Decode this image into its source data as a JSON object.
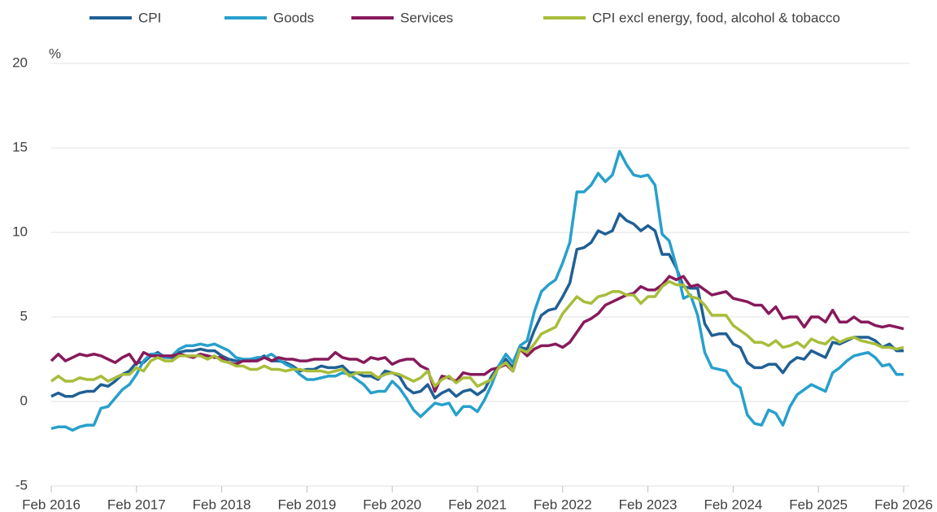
{
  "chart_data": {
    "type": "line",
    "y_label": "%",
    "categories": [
      "Feb 2016",
      null,
      null,
      null,
      null,
      null,
      null,
      null,
      null,
      null,
      null,
      null,
      "Feb 2017",
      null,
      null,
      null,
      null,
      null,
      null,
      null,
      null,
      null,
      null,
      null,
      "Feb 2018",
      null,
      null,
      null,
      null,
      null,
      null,
      null,
      null,
      null,
      null,
      null,
      "Feb 2019",
      null,
      null,
      null,
      null,
      null,
      null,
      null,
      null,
      null,
      null,
      null,
      "Feb 2020",
      null,
      null,
      null,
      null,
      null,
      null,
      null,
      null,
      null,
      null,
      null,
      "Feb 2021",
      null,
      null,
      null,
      null,
      null,
      null,
      null,
      null,
      null,
      null,
      null,
      "Feb 2022",
      null,
      null,
      null,
      null,
      null,
      null,
      null,
      null,
      null,
      null,
      null,
      "Feb 2023",
      null,
      null,
      null,
      null,
      null,
      null,
      null,
      null,
      null,
      null,
      null,
      "Feb 2024",
      null,
      null,
      null,
      null,
      null,
      null,
      null,
      null,
      null,
      null,
      null,
      "Feb 2025",
      null,
      null,
      null,
      null,
      null,
      null,
      null,
      null,
      null,
      null,
      null,
      "Feb 2026"
    ],
    "series": [
      {
        "name": "CPI",
        "color": "#206095",
        "values": [
          0.3,
          0.5,
          0.3,
          0.3,
          0.5,
          0.6,
          0.6,
          1.0,
          0.9,
          1.2,
          1.6,
          1.8,
          2.3,
          2.3,
          2.7,
          2.9,
          2.6,
          2.6,
          2.9,
          3.0,
          3.0,
          3.1,
          3.0,
          3.0,
          2.7,
          2.5,
          2.4,
          2.4,
          2.4,
          2.5,
          2.7,
          2.4,
          2.4,
          2.3,
          2.1,
          1.8,
          1.9,
          1.9,
          2.1,
          2.0,
          2.0,
          2.1,
          1.7,
          1.7,
          1.5,
          1.5,
          1.3,
          1.8,
          1.7,
          1.5,
          0.8,
          0.5,
          0.6,
          1.0,
          0.2,
          0.5,
          0.7,
          0.3,
          0.6,
          0.7,
          0.4,
          0.7,
          1.5,
          2.1,
          2.5,
          2.0,
          3.2,
          3.1,
          4.2,
          5.1,
          5.4,
          5.5,
          6.2,
          7.0,
          9.0,
          9.1,
          9.4,
          10.1,
          9.9,
          10.1,
          11.1,
          10.7,
          10.5,
          10.1,
          10.4,
          10.1,
          8.7,
          8.7,
          7.9,
          6.8,
          6.7,
          6.7,
          4.6,
          3.9,
          4.0,
          4.0,
          3.4,
          3.2,
          2.3,
          2.0,
          2.0,
          2.2,
          2.2,
          1.7,
          2.3,
          2.6,
          2.5,
          3.0,
          2.8,
          2.6,
          3.5,
          3.4,
          3.6,
          3.8,
          3.8,
          3.8,
          3.6,
          3.2,
          3.4,
          3.0,
          3.0
        ]
      },
      {
        "name": "Goods",
        "color": "#27a0cc",
        "values": [
          -1.6,
          -1.5,
          -1.5,
          -1.7,
          -1.5,
          -1.4,
          -1.4,
          -0.4,
          -0.3,
          0.2,
          0.7,
          1.0,
          1.6,
          2.4,
          2.8,
          2.8,
          2.6,
          2.7,
          3.1,
          3.3,
          3.3,
          3.4,
          3.3,
          3.4,
          3.2,
          3.0,
          2.6,
          2.5,
          2.5,
          2.6,
          2.6,
          2.8,
          2.5,
          2.2,
          2.0,
          1.6,
          1.3,
          1.3,
          1.4,
          1.5,
          1.5,
          1.7,
          1.6,
          1.3,
          1.0,
          0.5,
          0.6,
          0.6,
          1.2,
          0.8,
          0.2,
          -0.5,
          -0.9,
          -0.5,
          -0.1,
          -0.2,
          -0.1,
          -0.8,
          -0.3,
          -0.3,
          -0.6,
          0.1,
          1.0,
          2.1,
          2.8,
          2.3,
          3.3,
          3.6,
          5.3,
          6.5,
          6.9,
          7.2,
          8.2,
          9.4,
          12.4,
          12.4,
          12.8,
          13.5,
          13.0,
          13.4,
          14.8,
          14.0,
          13.4,
          13.3,
          13.4,
          12.8,
          9.9,
          9.5,
          8.0,
          6.1,
          6.3,
          5.1,
          2.9,
          2.0,
          1.9,
          1.8,
          1.1,
          0.8,
          -0.8,
          -1.3,
          -1.4,
          -0.5,
          -0.7,
          -1.4,
          -0.3,
          0.4,
          0.7,
          1.0,
          0.8,
          0.6,
          1.7,
          2.0,
          2.4,
          2.7,
          2.8,
          2.9,
          2.6,
          2.1,
          2.2,
          1.6,
          1.6
        ]
      },
      {
        "name": "Services",
        "color": "#871a5b",
        "values": [
          2.4,
          2.8,
          2.4,
          2.6,
          2.8,
          2.7,
          2.8,
          2.7,
          2.5,
          2.3,
          2.6,
          2.8,
          2.2,
          2.9,
          2.7,
          2.7,
          2.7,
          2.7,
          2.8,
          2.7,
          2.6,
          2.8,
          2.7,
          2.6,
          2.6,
          2.3,
          2.2,
          2.4,
          2.4,
          2.4,
          2.6,
          2.4,
          2.6,
          2.5,
          2.5,
          2.4,
          2.4,
          2.5,
          2.5,
          2.5,
          2.9,
          2.6,
          2.5,
          2.5,
          2.3,
          2.6,
          2.5,
          2.6,
          2.2,
          2.4,
          2.5,
          2.5,
          2.1,
          1.9,
          0.6,
          1.5,
          1.4,
          1.2,
          1.7,
          1.6,
          1.6,
          1.6,
          1.9,
          2.0,
          2.2,
          1.8,
          3.1,
          2.7,
          3.1,
          3.3,
          3.3,
          3.4,
          3.2,
          3.5,
          4.1,
          4.7,
          4.9,
          5.2,
          5.7,
          5.9,
          6.1,
          6.3,
          6.4,
          6.8,
          6.6,
          6.6,
          6.9,
          7.4,
          7.2,
          7.4,
          6.8,
          6.9,
          6.6,
          6.3,
          6.4,
          6.5,
          6.1,
          6.0,
          5.9,
          5.7,
          5.7,
          5.2,
          5.6,
          4.9,
          5.0,
          5.0,
          4.4,
          5.0,
          5.0,
          4.7,
          5.4,
          4.7,
          4.7,
          5.0,
          4.7,
          4.7,
          4.5,
          4.4,
          4.5,
          4.4,
          4.3
        ]
      },
      {
        "name": "CPI excl energy, food, alcohol & tobacco",
        "color": "#a8bd3a",
        "values": [
          1.2,
          1.5,
          1.2,
          1.2,
          1.4,
          1.3,
          1.3,
          1.5,
          1.2,
          1.4,
          1.6,
          1.6,
          2.0,
          1.8,
          2.4,
          2.6,
          2.4,
          2.4,
          2.7,
          2.7,
          2.7,
          2.7,
          2.5,
          2.7,
          2.4,
          2.3,
          2.1,
          2.1,
          1.9,
          1.9,
          2.1,
          1.9,
          1.9,
          1.8,
          1.9,
          1.9,
          1.8,
          1.8,
          1.8,
          1.7,
          1.8,
          1.9,
          1.5,
          1.7,
          1.7,
          1.7,
          1.4,
          1.6,
          1.7,
          1.6,
          1.4,
          1.2,
          1.4,
          1.8,
          0.9,
          1.3,
          1.5,
          1.1,
          1.4,
          1.4,
          0.9,
          1.1,
          1.3,
          2.0,
          2.3,
          1.8,
          3.1,
          2.9,
          3.4,
          4.0,
          4.2,
          4.4,
          5.2,
          5.7,
          6.2,
          5.9,
          5.8,
          6.2,
          6.3,
          6.5,
          6.5,
          6.3,
          6.3,
          5.8,
          6.2,
          6.2,
          6.8,
          7.1,
          6.9,
          6.9,
          6.2,
          6.1,
          5.7,
          5.1,
          5.1,
          5.1,
          4.5,
          4.2,
          3.9,
          3.5,
          3.5,
          3.3,
          3.6,
          3.2,
          3.3,
          3.5,
          3.2,
          3.7,
          3.5,
          3.4,
          3.8,
          3.5,
          3.7,
          3.8,
          3.6,
          3.5,
          3.4,
          3.2,
          3.2,
          3.1,
          3.2
        ]
      }
    ],
    "ylim": [
      -5,
      20
    ],
    "yticks": [
      -5,
      0,
      5,
      10,
      15,
      20
    ],
    "grid": true
  }
}
